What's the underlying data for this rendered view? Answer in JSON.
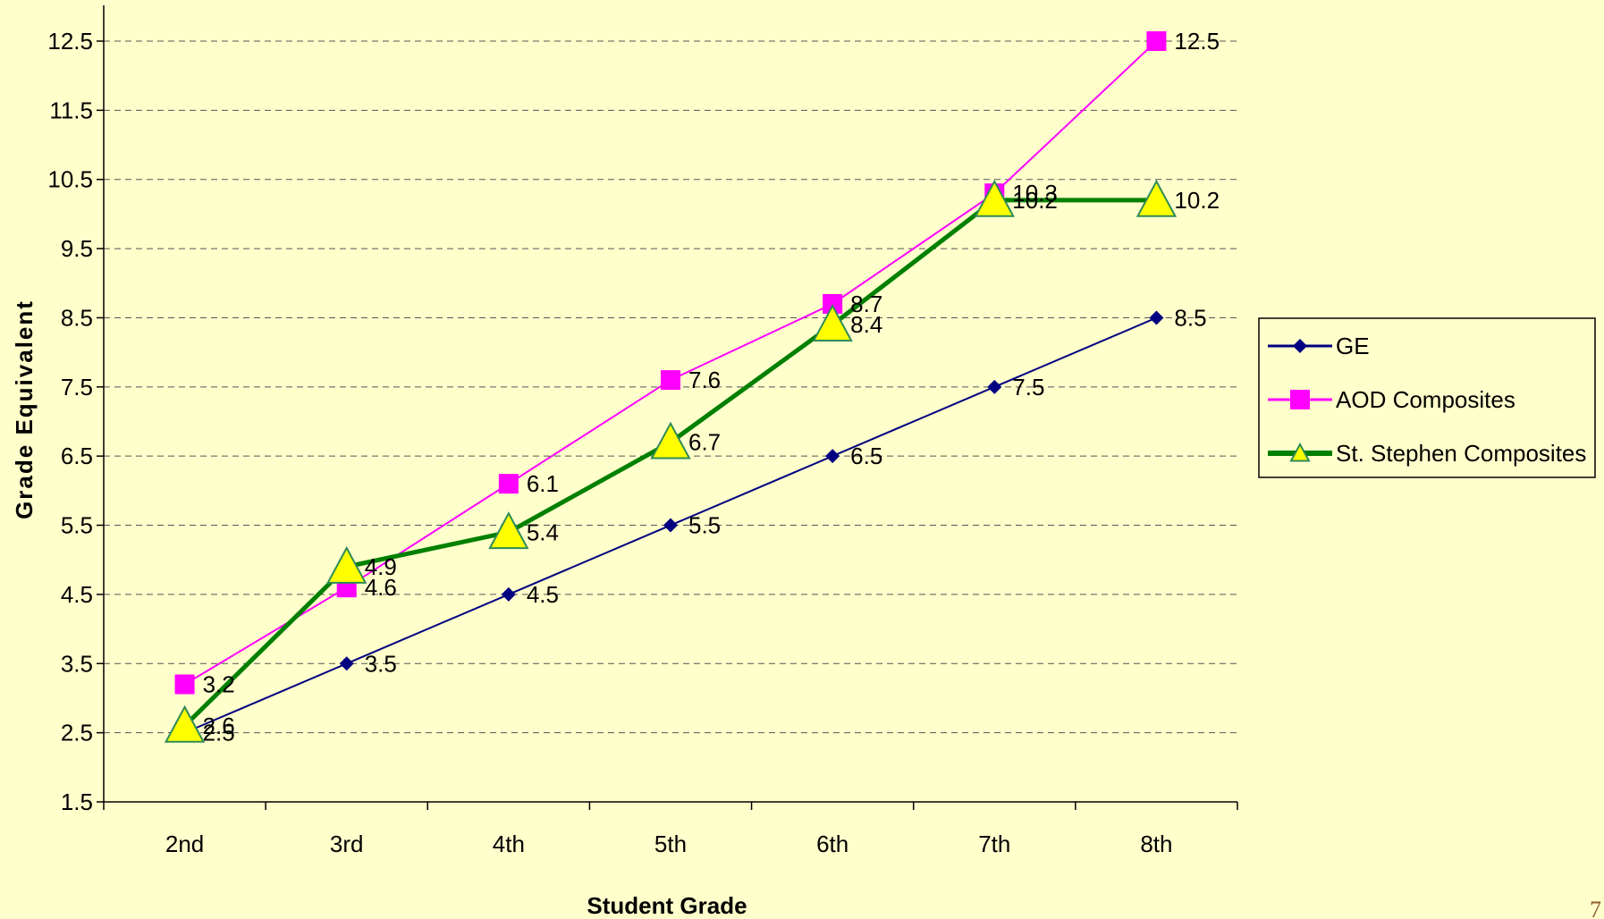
{
  "chart_data": {
    "type": "line",
    "categories": [
      "2nd",
      "3rd",
      "4th",
      "5th",
      "6th",
      "7th",
      "8th"
    ],
    "series": [
      {
        "name": "GE",
        "values": [
          2.5,
          3.5,
          4.5,
          5.5,
          6.5,
          7.5,
          8.5
        ],
        "color": "#000080",
        "marker": "diamond"
      },
      {
        "name": "AOD Composites",
        "values": [
          3.2,
          4.6,
          6.1,
          7.6,
          8.7,
          10.3,
          12.5
        ],
        "color": "#ff00ff",
        "marker": "square"
      },
      {
        "name": "St. Stephen Composites",
        "values": [
          2.6,
          4.9,
          5.4,
          6.7,
          8.4,
          10.2,
          10.2
        ],
        "color": "#008000",
        "marker": "triangle",
        "marker_fill": "#ffff00"
      }
    ],
    "xlabel": "Student Grade",
    "ylabel": "Grade Equivalent",
    "ylim": [
      1.5,
      12.5
    ],
    "yticks": [
      "1.5",
      "2.5",
      "3.5",
      "4.5",
      "5.5",
      "6.5",
      "7.5",
      "8.5",
      "9.5",
      "10.5",
      "11.5",
      "12.5"
    ],
    "grid": true,
    "legend_position": "right"
  },
  "page_number": "7"
}
